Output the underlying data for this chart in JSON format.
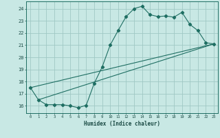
{
  "background_color": "#c8e8e4",
  "grid_color": "#a0c8c4",
  "line_color": "#1e6e62",
  "xlabel": "Humidex (Indice chaleur)",
  "xlim": [
    -0.5,
    23.5
  ],
  "ylim": [
    15.4,
    24.6
  ],
  "yticks": [
    16,
    17,
    18,
    19,
    20,
    21,
    22,
    23,
    24
  ],
  "xticks": [
    0,
    1,
    2,
    3,
    4,
    5,
    6,
    7,
    8,
    9,
    10,
    11,
    12,
    13,
    14,
    15,
    16,
    17,
    18,
    19,
    20,
    21,
    22,
    23
  ],
  "xtick_labels": [
    "0",
    "1",
    "2",
    "3",
    "4",
    "5",
    "6",
    "7",
    "8",
    "9",
    "10",
    "11",
    "12",
    "13",
    "14",
    "15",
    "16",
    "17",
    "18",
    "19",
    "20",
    "21",
    "22",
    "23"
  ],
  "line1_x": [
    0,
    1,
    2,
    3,
    4,
    5,
    6,
    7,
    8,
    9,
    10,
    11,
    12,
    13,
    14,
    15,
    16,
    17,
    18,
    19,
    20,
    21,
    22,
    23
  ],
  "line1_y": [
    17.5,
    16.5,
    16.1,
    16.1,
    16.1,
    16.0,
    15.85,
    16.05,
    17.85,
    19.2,
    21.0,
    22.2,
    23.35,
    24.0,
    24.2,
    23.5,
    23.35,
    23.4,
    23.3,
    23.7,
    22.7,
    22.2,
    21.2,
    21.1
  ],
  "line2_x": [
    0,
    23
  ],
  "line2_y": [
    17.5,
    21.1
  ],
  "line3_x": [
    1,
    23
  ],
  "line3_y": [
    16.5,
    21.1
  ]
}
